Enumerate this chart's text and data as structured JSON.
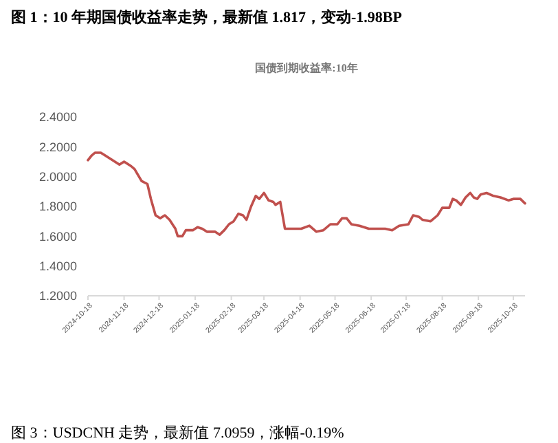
{
  "chart_data": {
    "type": "line",
    "title": "图 1：10 年期国债收益率走势，最新值 1.817，变动-1.98BP",
    "subtitle": "国债到期收益率:10年",
    "annotations": [
      "图 3：USDCNH 走势，最新值 7.0959，涨幅-0.19%"
    ],
    "x": [
      "2024-10-18",
      "2024-10-21",
      "2024-10-24",
      "2024-10-29",
      "2024-11-02",
      "2024-11-08",
      "2024-11-14",
      "2024-11-18",
      "2024-11-24",
      "2024-11-27",
      "2024-12-03",
      "2024-12-08",
      "2024-12-11",
      "2024-12-15",
      "2024-12-19",
      "2024-12-23",
      "2024-12-27",
      "2025-01-01",
      "2025-01-03",
      "2025-01-07",
      "2025-01-10",
      "2025-01-16",
      "2025-01-20",
      "2025-01-24",
      "2025-01-28",
      "2025-02-04",
      "2025-02-08",
      "2025-02-12",
      "2025-02-16",
      "2025-02-20",
      "2025-02-24",
      "2025-02-28",
      "2025-03-03",
      "2025-03-07",
      "2025-03-11",
      "2025-03-14",
      "2025-03-18",
      "2025-03-22",
      "2025-03-26",
      "2025-03-28",
      "2025-04-01",
      "2025-04-05",
      "2025-04-12",
      "2025-04-19",
      "2025-04-26",
      "2025-05-02",
      "2025-05-08",
      "2025-05-14",
      "2025-05-20",
      "2025-05-24",
      "2025-05-28",
      "2025-06-01",
      "2025-06-08",
      "2025-06-16",
      "2025-06-30",
      "2025-07-06",
      "2025-07-12",
      "2025-07-20",
      "2025-07-24",
      "2025-07-29",
      "2025-08-01",
      "2025-08-08",
      "2025-08-14",
      "2025-08-18",
      "2025-08-24",
      "2025-08-27",
      "2025-08-30",
      "2025-09-03",
      "2025-09-07",
      "2025-09-11",
      "2025-09-14",
      "2025-09-17",
      "2025-09-20",
      "2025-09-25",
      "2025-10-01",
      "2025-10-07",
      "2025-10-14",
      "2025-10-18",
      "2025-10-24",
      "2025-10-28"
    ],
    "series": [
      {
        "color": "#c0504d",
        "values": [
          2.11,
          2.14,
          2.16,
          2.16,
          2.14,
          2.11,
          2.08,
          2.1,
          2.07,
          2.05,
          1.97,
          1.95,
          1.85,
          1.74,
          1.72,
          1.74,
          1.71,
          1.65,
          1.6,
          1.6,
          1.64,
          1.64,
          1.66,
          1.65,
          1.63,
          1.63,
          1.61,
          1.64,
          1.68,
          1.7,
          1.75,
          1.74,
          1.71,
          1.8,
          1.87,
          1.85,
          1.89,
          1.84,
          1.83,
          1.81,
          1.83,
          1.65,
          1.65,
          1.65,
          1.67,
          1.63,
          1.64,
          1.68,
          1.68,
          1.72,
          1.72,
          1.68,
          1.67,
          1.65,
          1.65,
          1.64,
          1.67,
          1.68,
          1.74,
          1.73,
          1.71,
          1.7,
          1.74,
          1.79,
          1.79,
          1.85,
          1.84,
          1.81,
          1.86,
          1.89,
          1.86,
          1.85,
          1.88,
          1.89,
          1.87,
          1.86,
          1.84,
          1.85,
          1.85,
          1.82
        ]
      }
    ],
    "xlim": [
      "2024-10-18",
      "2025-10-28"
    ],
    "xticks": [
      "2024-10-18",
      "2024-11-18",
      "2024-12-18",
      "2025-01-18",
      "2025-02-18",
      "2025-03-18",
      "2025-04-18",
      "2025-05-18",
      "2025-06-18",
      "2025-07-18",
      "2025-08-18",
      "2025-09-18",
      "2025-10-18"
    ],
    "ylim": [
      1.2,
      2.4
    ],
    "yticks": [
      {
        "value": 1.2,
        "label": "1.2000"
      },
      {
        "value": 1.4,
        "label": "1.4000"
      },
      {
        "value": 1.6,
        "label": "1.6000"
      },
      {
        "value": 1.8,
        "label": "1.8000"
      },
      {
        "value": 2.0,
        "label": "2.0000"
      },
      {
        "value": 2.2,
        "label": "2.2000"
      },
      {
        "value": 2.4,
        "label": "2.4000"
      }
    ],
    "grid": false,
    "marker": "none",
    "line_style": "solid"
  }
}
